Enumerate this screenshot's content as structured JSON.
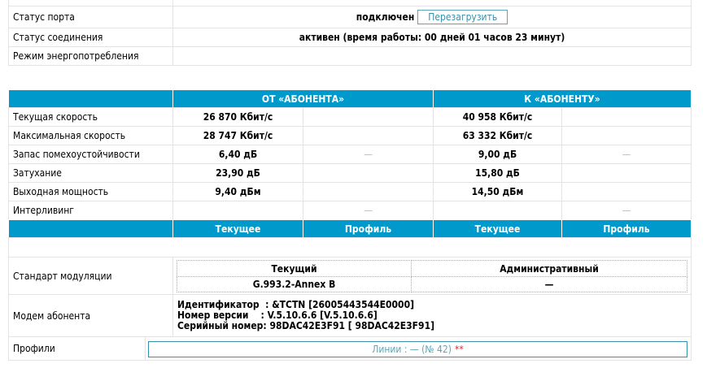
{
  "status": {
    "port_label": "Статус порта",
    "port_value": "подключен",
    "reboot_button": "Перезагрузить",
    "connection_label": "Статус соединения",
    "connection_value": "активен (время работы: 00 дней 01 часов 23 минут)",
    "power_label": "Режим энергопотребления",
    "power_value": ""
  },
  "stats": {
    "header": {
      "from": "ОТ «АБОНЕНТА»",
      "to": "К «АБОНЕНТУ»"
    },
    "rows": [
      {
        "label": "Текущая скорость",
        "from_cur": "26 870 Кбит/с",
        "from_prof": "",
        "to_cur": "40 958 Кбит/с",
        "to_prof": ""
      },
      {
        "label": "Максимальная скорость",
        "from_cur": "28 747 Кбит/с",
        "from_prof": "",
        "to_cur": "63 332 Кбит/с",
        "to_prof": ""
      },
      {
        "label": "Запас помехоустойчивости",
        "from_cur": "6,40 дБ",
        "from_prof": "—",
        "to_cur": "9,00 дБ",
        "to_prof": "—"
      },
      {
        "label": "Затухание",
        "from_cur": "23,90 дБ",
        "from_prof": "",
        "to_cur": "15,80 дБ",
        "to_prof": ""
      },
      {
        "label": "Выходная мощность",
        "from_cur": "9,40 дБм",
        "from_prof": "",
        "to_cur": "14,50 дБм",
        "to_prof": ""
      },
      {
        "label": "Интерливинг",
        "from_cur": "",
        "from_prof": "—",
        "to_cur": "",
        "to_prof": "—"
      }
    ],
    "subheader": {
      "current": "Текущее",
      "profile": "Профиль"
    }
  },
  "modulation": {
    "label": "Стандарт модуляции",
    "col_current": "Текущий",
    "col_admin": "Административный",
    "current": "G.993.2-Annex B",
    "admin": "—"
  },
  "modem": {
    "label": "Модем абонента",
    "line1": "Идентификатор  : &TCTN [26005443544E0000]",
    "line2": "Номер версии    : V.5.10.6.6 [V.5.10.6.6]",
    "line3": "Серийный номер: 98DAC42E3F91 [ 98DAC42E3F91]"
  },
  "profiles": {
    "label": "Профили",
    "value": "Линии : — (№ 42)",
    "marker": "**"
  },
  "colors": {
    "header": "#0099cc",
    "button": "#3a8fa8"
  }
}
